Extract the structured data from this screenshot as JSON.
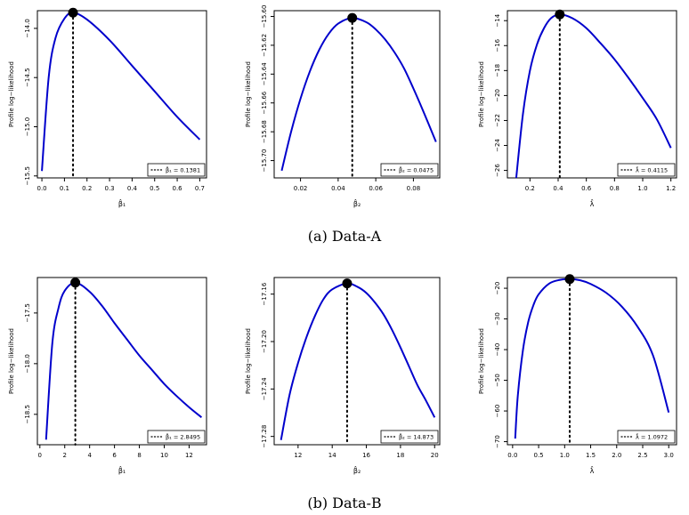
{
  "captions": {
    "a": "(a) Data-A",
    "b": "(b) Data-B"
  },
  "styles": {
    "curve_color": "#0000cc",
    "axis_color": "#000000"
  },
  "chart_data": [
    {
      "type": "line",
      "group": "a",
      "id": "a1",
      "ylabel": "Profile log−likelihood",
      "xlabel": "β̂₁",
      "xlim": [
        -0.02,
        0.73
      ],
      "ylim": [
        -15.52,
        -13.82
      ],
      "xticks": [
        0,
        0.1,
        0.2,
        0.3,
        0.4,
        0.5,
        0.6,
        0.7
      ],
      "xtick_labels": [
        "0.0",
        "0.1",
        "0.2",
        "0.3",
        "0.4",
        "0.5",
        "0.6",
        "0.7"
      ],
      "yticks": [
        -15.5,
        -15.0,
        -14.5,
        -14.0
      ],
      "ytick_labels": [
        "−15.5",
        "−15.0",
        "−14.5",
        "−14.0"
      ],
      "series": [
        {
          "name": "profile",
          "points": [
            [
              0.0,
              -15.45
            ],
            [
              0.03,
              -14.5
            ],
            [
              0.06,
              -14.1
            ],
            [
              0.1,
              -13.9
            ],
            [
              0.1381,
              -13.84
            ],
            [
              0.2,
              -13.91
            ],
            [
              0.3,
              -14.12
            ],
            [
              0.4,
              -14.38
            ],
            [
              0.5,
              -14.64
            ],
            [
              0.6,
              -14.9
            ],
            [
              0.7,
              -15.13
            ]
          ]
        }
      ],
      "mle": {
        "x": 0.1381,
        "y": -13.84
      },
      "legend": {
        "symbol": "β̂₁",
        "value": "0.1381",
        "position": "bottom-right"
      }
    },
    {
      "type": "line",
      "group": "a",
      "id": "a2",
      "ylabel": "Profile log−likelihood",
      "xlabel": "β̂₂",
      "xlim": [
        0.006,
        0.094
      ],
      "ylim": [
        -15.712,
        -15.596
      ],
      "xticks": [
        0.02,
        0.04,
        0.06,
        0.08
      ],
      "xtick_labels": [
        "0.02",
        "0.04",
        "0.06",
        "0.08"
      ],
      "yticks": [
        -15.7,
        -15.68,
        -15.66,
        -15.64,
        -15.62,
        -15.6
      ],
      "ytick_labels": [
        "−15.70",
        "−15.68",
        "−15.66",
        "−15.64",
        "−15.62",
        "−15.60"
      ],
      "series": [
        {
          "name": "profile",
          "points": [
            [
              0.01,
              -15.707
            ],
            [
              0.015,
              -15.68
            ],
            [
              0.02,
              -15.657
            ],
            [
              0.025,
              -15.638
            ],
            [
              0.03,
              -15.623
            ],
            [
              0.035,
              -15.612
            ],
            [
              0.04,
              -15.605
            ],
            [
              0.0475,
              -15.601
            ],
            [
              0.055,
              -15.604
            ],
            [
              0.06,
              -15.609
            ],
            [
              0.065,
              -15.616
            ],
            [
              0.07,
              -15.625
            ],
            [
              0.075,
              -15.636
            ],
            [
              0.08,
              -15.65
            ],
            [
              0.085,
              -15.665
            ],
            [
              0.092,
              -15.687
            ]
          ]
        }
      ],
      "mle": {
        "x": 0.0475,
        "y": -15.601
      },
      "legend": {
        "symbol": "β̂₂",
        "value": "0.0475",
        "position": "bottom-right"
      }
    },
    {
      "type": "line",
      "group": "a",
      "id": "a3",
      "ylabel": "Profile log−likelihood",
      "xlabel": "λ̂",
      "xlim": [
        0.04,
        1.24
      ],
      "ylim": [
        -26.6,
        -13.2
      ],
      "xticks": [
        0.2,
        0.4,
        0.6,
        0.8,
        1.0,
        1.2
      ],
      "xtick_labels": [
        "0.2",
        "0.4",
        "0.6",
        "0.8",
        "1.0",
        "1.2"
      ],
      "yticks": [
        -26,
        -24,
        -22,
        -20,
        -18,
        -16,
        -14
      ],
      "ytick_labels": [
        "−26",
        "−24",
        "−22",
        "−20",
        "−18",
        "−16",
        "−14"
      ],
      "series": [
        {
          "name": "profile",
          "points": [
            [
              0.1,
              -26.9
            ],
            [
              0.15,
              -21.5
            ],
            [
              0.2,
              -18.0
            ],
            [
              0.25,
              -15.9
            ],
            [
              0.3,
              -14.6
            ],
            [
              0.35,
              -13.8
            ],
            [
              0.4115,
              -13.5
            ],
            [
              0.5,
              -13.8
            ],
            [
              0.6,
              -14.6
            ],
            [
              0.7,
              -15.8
            ],
            [
              0.8,
              -17.1
            ],
            [
              0.9,
              -18.6
            ],
            [
              1.0,
              -20.2
            ],
            [
              1.1,
              -21.9
            ],
            [
              1.2,
              -24.2
            ]
          ]
        }
      ],
      "mle": {
        "x": 0.4115,
        "y": -13.5
      },
      "legend": {
        "symbol": "λ̂",
        "value": "0.4115",
        "position": "bottom-right"
      }
    },
    {
      "type": "line",
      "group": "b",
      "id": "b1",
      "ylabel": "Profile log−likelihood",
      "xlabel": "β̂₁",
      "xlim": [
        -0.2,
        13.4
      ],
      "ylim": [
        -18.8,
        -17.15
      ],
      "xticks": [
        0,
        2,
        4,
        6,
        8,
        10,
        12
      ],
      "xtick_labels": [
        "0",
        "2",
        "4",
        "6",
        "8",
        "10",
        "12"
      ],
      "yticks": [
        -18.5,
        -18.0,
        -17.5
      ],
      "ytick_labels": [
        "−18.5",
        "−18.0",
        "−17.5"
      ],
      "series": [
        {
          "name": "profile",
          "points": [
            [
              0.5,
              -18.75
            ],
            [
              1.0,
              -17.8
            ],
            [
              1.5,
              -17.45
            ],
            [
              2.0,
              -17.28
            ],
            [
              2.8495,
              -17.2
            ],
            [
              4.0,
              -17.29
            ],
            [
              5.0,
              -17.43
            ],
            [
              6.0,
              -17.6
            ],
            [
              7.0,
              -17.76
            ],
            [
              8.0,
              -17.92
            ],
            [
              9.0,
              -18.06
            ],
            [
              10.0,
              -18.2
            ],
            [
              11.0,
              -18.32
            ],
            [
              12.0,
              -18.43
            ],
            [
              13.0,
              -18.53
            ]
          ]
        }
      ],
      "mle": {
        "x": 2.8495,
        "y": -17.2
      },
      "legend": {
        "symbol": "β̂₁",
        "value": "2.8495",
        "position": "bottom-right"
      }
    },
    {
      "type": "line",
      "group": "b",
      "id": "b2",
      "ylabel": "Profile log−likelihood",
      "xlabel": "β̂₂",
      "xlim": [
        10.6,
        20.3
      ],
      "ylim": [
        -17.287,
        -17.146
      ],
      "xticks": [
        12,
        14,
        16,
        18,
        20
      ],
      "xtick_labels": [
        "12",
        "14",
        "16",
        "18",
        "20"
      ],
      "yticks": [
        -17.28,
        -17.24,
        -17.2,
        -17.16
      ],
      "ytick_labels": [
        "−17.28",
        "−17.24",
        "−17.20",
        "−17.16"
      ],
      "series": [
        {
          "name": "profile",
          "points": [
            [
              11.0,
              -17.283
            ],
            [
              11.5,
              -17.245
            ],
            [
              12.0,
              -17.218
            ],
            [
              12.5,
              -17.196
            ],
            [
              13.0,
              -17.178
            ],
            [
              13.5,
              -17.164
            ],
            [
              14.0,
              -17.156
            ],
            [
              14.873,
              -17.151
            ],
            [
              15.5,
              -17.154
            ],
            [
              16.0,
              -17.159
            ],
            [
              16.5,
              -17.167
            ],
            [
              17.0,
              -17.177
            ],
            [
              17.5,
              -17.19
            ],
            [
              18.0,
              -17.205
            ],
            [
              18.5,
              -17.221
            ],
            [
              19.0,
              -17.237
            ],
            [
              19.5,
              -17.25
            ],
            [
              20.0,
              -17.264
            ]
          ]
        }
      ],
      "mle": {
        "x": 14.873,
        "y": -17.151
      },
      "legend": {
        "symbol": "β̂₂",
        "value": "14.873",
        "position": "bottom-right"
      }
    },
    {
      "type": "line",
      "group": "b",
      "id": "b3",
      "ylabel": "Profile log−likelihood",
      "xlabel": "λ̂",
      "xlim": [
        -0.1,
        3.15
      ],
      "ylim": [
        -71,
        -16.5
      ],
      "xticks": [
        0.0,
        0.5,
        1.0,
        1.5,
        2.0,
        2.5,
        3.0
      ],
      "xtick_labels": [
        "0.0",
        "0.5",
        "1.0",
        "1.5",
        "2.0",
        "2.5",
        "3.0"
      ],
      "yticks": [
        -70,
        -60,
        -50,
        -40,
        -30,
        -20
      ],
      "ytick_labels": [
        "−70",
        "−60",
        "−50",
        "−40",
        "−30",
        "−20"
      ],
      "series": [
        {
          "name": "profile",
          "points": [
            [
              0.05,
              -69.0
            ],
            [
              0.1,
              -55.0
            ],
            [
              0.2,
              -40.0
            ],
            [
              0.3,
              -31.0
            ],
            [
              0.4,
              -25.5
            ],
            [
              0.5,
              -22.0
            ],
            [
              0.7,
              -18.5
            ],
            [
              0.9,
              -17.3
            ],
            [
              1.0972,
              -17.0
            ],
            [
              1.3,
              -17.4
            ],
            [
              1.5,
              -18.6
            ],
            [
              1.8,
              -21.5
            ],
            [
              2.1,
              -26.0
            ],
            [
              2.4,
              -32.5
            ],
            [
              2.7,
              -42.0
            ],
            [
              3.0,
              -60.5
            ]
          ]
        }
      ],
      "mle": {
        "x": 1.0972,
        "y": -17.0
      },
      "legend": {
        "symbol": "λ̂",
        "value": "1.0972",
        "position": "bottom-right"
      }
    }
  ]
}
